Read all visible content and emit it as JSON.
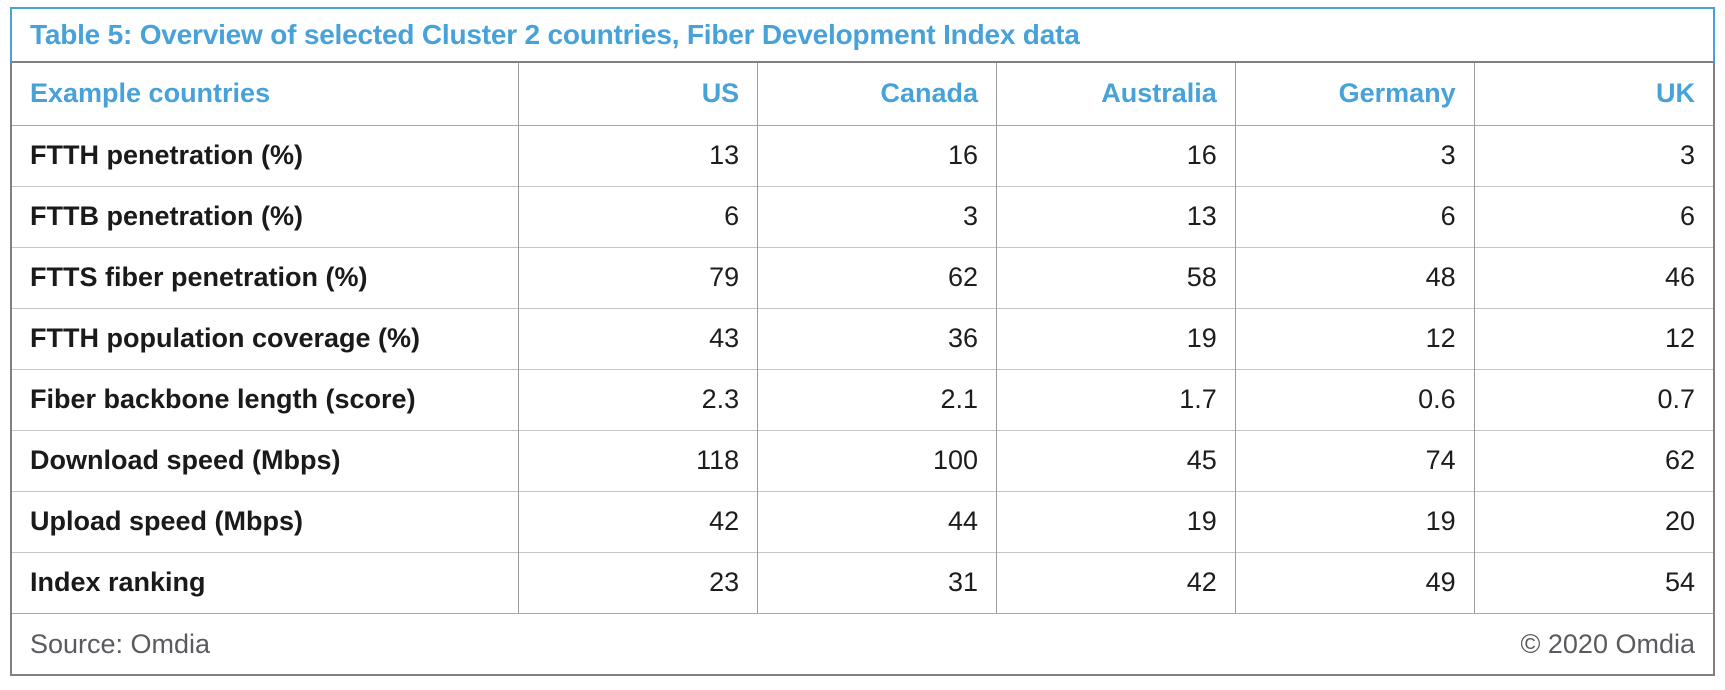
{
  "title": "Table 5: Overview of selected Cluster 2 countries, Fiber Development Index data",
  "table": {
    "header": [
      "Example countries",
      "US",
      "Canada",
      "Australia",
      "Germany",
      "UK"
    ],
    "rows": [
      {
        "label": "FTTH penetration (%)",
        "values": [
          "13",
          "16",
          "16",
          "3",
          "3"
        ]
      },
      {
        "label": "FTTB penetration (%)",
        "values": [
          "6",
          "3",
          "13",
          "6",
          "6"
        ]
      },
      {
        "label": "FTTS fiber penetration (%)",
        "values": [
          "79",
          "62",
          "58",
          "48",
          "46"
        ]
      },
      {
        "label": "FTTH population coverage (%)",
        "values": [
          "43",
          "36",
          "19",
          "12",
          "12"
        ]
      },
      {
        "label": "Fiber backbone length (score)",
        "values": [
          "2.3",
          "2.1",
          "1.7",
          "0.6",
          "0.7"
        ]
      },
      {
        "label": "Download speed (Mbps)",
        "values": [
          "118",
          "100",
          "45",
          "74",
          "62"
        ]
      },
      {
        "label": "Upload speed (Mbps)",
        "values": [
          "42",
          "44",
          "19",
          "19",
          "20"
        ]
      },
      {
        "label": "Index ranking",
        "values": [
          "23",
          "31",
          "42",
          "49",
          "54"
        ]
      }
    ]
  },
  "footer": {
    "source": "Source: Omdia",
    "copyright": "© 2020 Omdia"
  },
  "colors": {
    "accent_blue": "#47a2d9",
    "outer_border": "#7e8083",
    "vertical_border": "#9b9da0",
    "horizontal_border": "#c4c5c7",
    "label_text": "#1a1a1a",
    "value_text": "#1d1d1f",
    "footer_text": "#595b5e",
    "background": "#ffffff"
  },
  "chart_data": {
    "type": "table",
    "title": "Table 5: Overview of selected Cluster 2 countries, Fiber Development Index data",
    "columns": [
      "Example countries",
      "US",
      "Canada",
      "Australia",
      "Germany",
      "UK"
    ],
    "rows": [
      [
        "FTTH penetration (%)",
        13,
        16,
        16,
        3,
        3
      ],
      [
        "FTTB penetration (%)",
        6,
        3,
        13,
        6,
        6
      ],
      [
        "FTTS fiber penetration (%)",
        79,
        62,
        58,
        48,
        46
      ],
      [
        "FTTH population coverage (%)",
        43,
        36,
        19,
        12,
        12
      ],
      [
        "Fiber backbone length (score)",
        2.3,
        2.1,
        1.7,
        0.6,
        0.7
      ],
      [
        "Download speed (Mbps)",
        118,
        100,
        45,
        74,
        62
      ],
      [
        "Upload speed (Mbps)",
        42,
        44,
        19,
        19,
        20
      ],
      [
        "Index ranking",
        23,
        31,
        42,
        49,
        54
      ]
    ],
    "source": "Source: Omdia",
    "copyright": "© 2020 Omdia",
    "layout": {
      "label_column_align": "left",
      "value_columns_align": "right",
      "header_color": "#47a2d9",
      "title_border_color": "#47a2d9"
    }
  }
}
